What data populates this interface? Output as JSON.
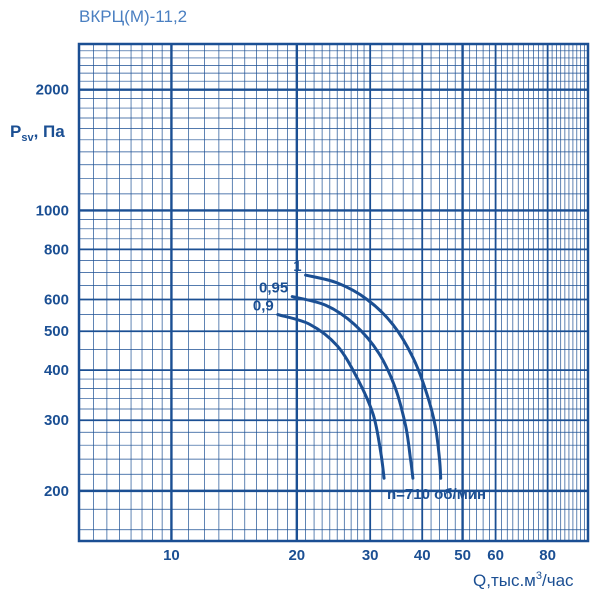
{
  "colors": {
    "accent": "#1b4f93",
    "title": "#4a7fc1",
    "background": "#ffffff"
  },
  "chart_data": {
    "type": "line",
    "title": "ВКРЦ(М)-11,2",
    "xlabel_main": "Q,тыс.м",
    "xlabel_sup": "3",
    "xlabel_tail": "/час",
    "ylabel_main": "P",
    "ylabel_sub": "sv",
    "ylabel_tail": ", Па",
    "x_scale": "log",
    "y_scale": "log",
    "xlim": [
      6,
      100
    ],
    "ylim": [
      150,
      2600
    ],
    "grid": true,
    "x_ticks": [
      10,
      20,
      30,
      40,
      50,
      60,
      80
    ],
    "x_tick_labels": [
      "10",
      "20",
      "30",
      "40",
      "50",
      "60",
      "80"
    ],
    "y_ticks": [
      200,
      300,
      400,
      500,
      600,
      800,
      1000,
      2000
    ],
    "y_tick_labels": [
      "200",
      "300",
      "400",
      "500",
      "600",
      "800",
      "1000",
      "2000"
    ],
    "speed_label": "n=710 об/мин",
    "series": [
      {
        "name": "1",
        "x": [
          21.0,
          25.0,
          29.5,
          34.0,
          38.0,
          41.0,
          43.0,
          44.0,
          44.3
        ],
        "y": [
          690,
          660,
          600,
          520,
          430,
          350,
          290,
          240,
          215
        ]
      },
      {
        "name": "0,95",
        "x": [
          19.5,
          23.5,
          27.5,
          31.5,
          34.5,
          36.5,
          37.5,
          38.0
        ],
        "y": [
          610,
          580,
          520,
          440,
          360,
          290,
          240,
          215
        ]
      },
      {
        "name": "0,9",
        "x": [
          18.0,
          21.5,
          25.0,
          28.0,
          30.5,
          31.8,
          32.4
        ],
        "y": [
          550,
          520,
          460,
          380,
          310,
          250,
          215
        ]
      }
    ]
  }
}
